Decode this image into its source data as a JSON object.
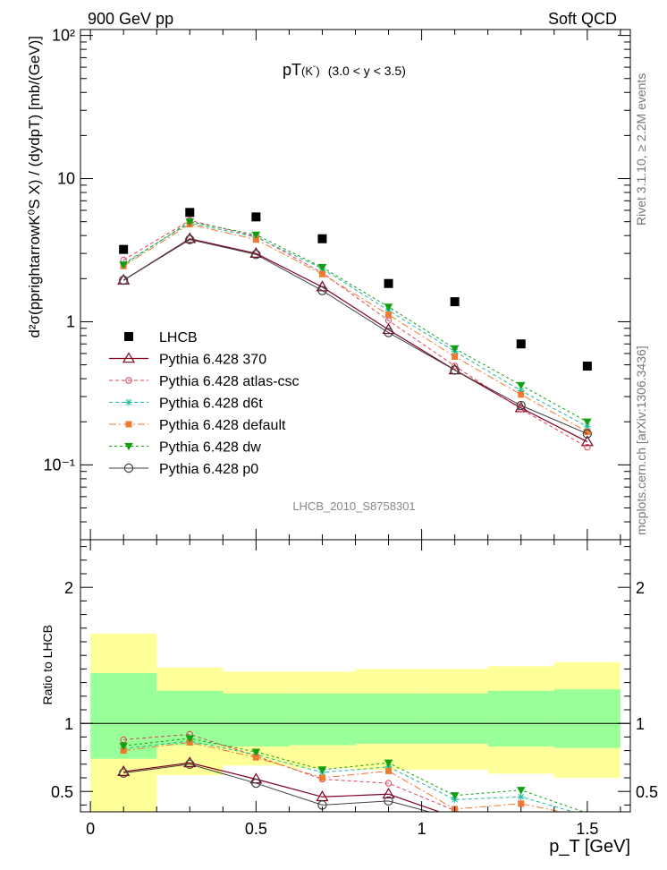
{
  "header": {
    "left": "900 GeV pp",
    "right": "Soft QCD",
    "plot_title_main": "pT",
    "plot_title_sub": "(K",
    "plot_title_sup": "-",
    "plot_title_close": ")",
    "plot_title_range": "(3.0 < y < 3.5)",
    "analysis_id": "LHCB_2010_S8758301"
  },
  "side_labels": {
    "rivet": "Rivet 3.1.10, ≥ 2.2M events",
    "mcplots": "mcplots.cern.ch [arXiv:1306.3436]"
  },
  "axes": {
    "ylabel_main": "d²σ(pprightarrowK⁰S X) / (dydpT) [mb/(GeV)]",
    "ylabel_ratio": "Ratio to LHCB",
    "xlabel": "p_T [GeV]",
    "x_ticklabels": [
      "0",
      "0.5",
      "1",
      "1.5"
    ],
    "y_ticklabels_main": [
      "10⁻¹",
      "1",
      "10",
      "10²"
    ],
    "y_ticklabels_ratio": [
      "0.5",
      "1",
      "2"
    ]
  },
  "colors": {
    "data": "#000000",
    "p370": "#800020",
    "atlas": "#e0405a",
    "d6t": "#20b8a0",
    "default": "#f07a30",
    "dw": "#10a010",
    "p0": "#404040",
    "band_outer": "#ffff99",
    "band_inner": "#99ff99"
  },
  "chart_data": {
    "type": "scatter",
    "x_scale": "linear",
    "y_scale": "log",
    "xlim": [
      -0.03,
      1.63
    ],
    "ylim": [
      0.03,
      110
    ],
    "ratio_ylim": [
      0.35,
      2.35
    ],
    "x": [
      0.1,
      0.3,
      0.5,
      0.7,
      0.9,
      1.1,
      1.3,
      1.5
    ],
    "bin_edges": [
      0.0,
      0.2,
      0.4,
      0.6,
      0.8,
      1.0,
      1.2,
      1.4,
      1.6
    ],
    "reference": {
      "name": "LHCB",
      "values": [
        3.2,
        5.8,
        5.4,
        3.8,
        1.85,
        1.38,
        0.7,
        0.49
      ],
      "band_outer": [
        [
          0.35,
          1.66
        ],
        [
          0.62,
          1.41
        ],
        [
          0.69,
          1.38
        ],
        [
          0.67,
          1.38
        ],
        [
          0.66,
          1.4
        ],
        [
          0.66,
          1.4
        ],
        [
          0.63,
          1.42
        ],
        [
          0.6,
          1.45
        ]
      ],
      "band_inner": [
        [
          0.74,
          1.37
        ],
        [
          0.84,
          1.24
        ],
        [
          0.83,
          1.22
        ],
        [
          0.84,
          1.22
        ],
        [
          0.85,
          1.22
        ],
        [
          0.85,
          1.22
        ],
        [
          0.83,
          1.24
        ],
        [
          0.82,
          1.25
        ]
      ]
    },
    "series": [
      {
        "name": "Pythia 6.428 370",
        "key": "p370",
        "marker": "triangle-open",
        "dash": "",
        "width": 1.2,
        "values": [
          1.95,
          3.8,
          3.0,
          1.75,
          0.88,
          0.46,
          0.25,
          0.145
        ]
      },
      {
        "name": "Pythia 6.428 atlas-csc",
        "key": "atlas",
        "marker": "circle-small",
        "dash": "4,3",
        "width": 1,
        "values": [
          2.7,
          5.1,
          3.95,
          2.2,
          1.02,
          0.49,
          0.245,
          0.133
        ]
      },
      {
        "name": "Pythia 6.428 d6t",
        "key": "d6t",
        "marker": "star",
        "dash": "4,3",
        "width": 1,
        "values": [
          2.55,
          4.9,
          3.9,
          2.35,
          1.2,
          0.62,
          0.33,
          0.185
        ]
      },
      {
        "name": "Pythia 6.428 default",
        "key": "default",
        "marker": "square",
        "dash": "8,3,2,3",
        "width": 1,
        "values": [
          2.45,
          4.8,
          3.75,
          2.15,
          1.12,
          0.57,
          0.31,
          0.17
        ]
      },
      {
        "name": "Pythia 6.428 dw",
        "key": "dw",
        "marker": "triangle-down",
        "dash": "3,3",
        "width": 1,
        "values": [
          2.5,
          5.0,
          4.05,
          2.4,
          1.27,
          0.65,
          0.36,
          0.2
        ]
      },
      {
        "name": "Pythia 6.428 p0",
        "key": "p0",
        "marker": "circle-open",
        "dash": "",
        "width": 1,
        "values": [
          1.95,
          3.75,
          2.95,
          1.65,
          0.84,
          0.46,
          0.26,
          0.165
        ]
      }
    ],
    "ratios": {
      "p370": [
        0.645,
        0.71,
        0.59,
        0.46,
        0.48,
        0.31,
        0.23,
        0.2
      ],
      "atlas": [
        0.88,
        0.92,
        0.76,
        0.59,
        0.56,
        0.36,
        0.26,
        0.22
      ],
      "d6t": [
        0.815,
        0.87,
        0.77,
        0.64,
        0.68,
        0.44,
        0.46,
        0.32
      ],
      "default": [
        0.8,
        0.86,
        0.75,
        0.6,
        0.65,
        0.37,
        0.41,
        0.31
      ],
      "dw": [
        0.835,
        0.89,
        0.79,
        0.66,
        0.71,
        0.47,
        0.51,
        0.34
      ],
      "p0": [
        0.635,
        0.7,
        0.56,
        0.4,
        0.43,
        0.3,
        0.23,
        0.2
      ]
    }
  }
}
